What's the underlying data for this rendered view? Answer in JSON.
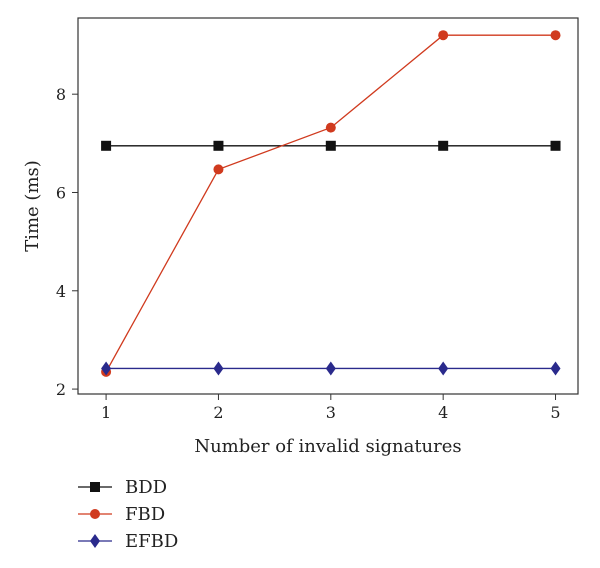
{
  "chart_data": {
    "type": "line",
    "xlabel": "Number of invalid signatures",
    "ylabel": "Time (ms)",
    "x": [
      1,
      2,
      3,
      4,
      5
    ],
    "xlim": [
      0.75,
      5.2
    ],
    "ylim": [
      1.9,
      9.55
    ],
    "xticks": [
      "1",
      "2",
      "3",
      "4",
      "5"
    ],
    "yticks": [
      "2",
      "4",
      "6",
      "8"
    ],
    "ytick_values": [
      2,
      4,
      6,
      8
    ],
    "grid": false,
    "legend_position": "bottom-left, below plot",
    "series": [
      {
        "name": "BDD",
        "values": [
          6.95,
          6.95,
          6.95,
          6.95,
          6.95
        ],
        "color": "#111111",
        "marker": "square"
      },
      {
        "name": "FBD",
        "values": [
          2.35,
          6.47,
          7.32,
          9.2,
          9.2
        ],
        "color": "#d03a1e",
        "marker": "circle"
      },
      {
        "name": "EFBD",
        "values": [
          2.42,
          2.42,
          2.42,
          2.42,
          2.42
        ],
        "color": "#2a2a8c",
        "marker": "diamond"
      }
    ]
  }
}
